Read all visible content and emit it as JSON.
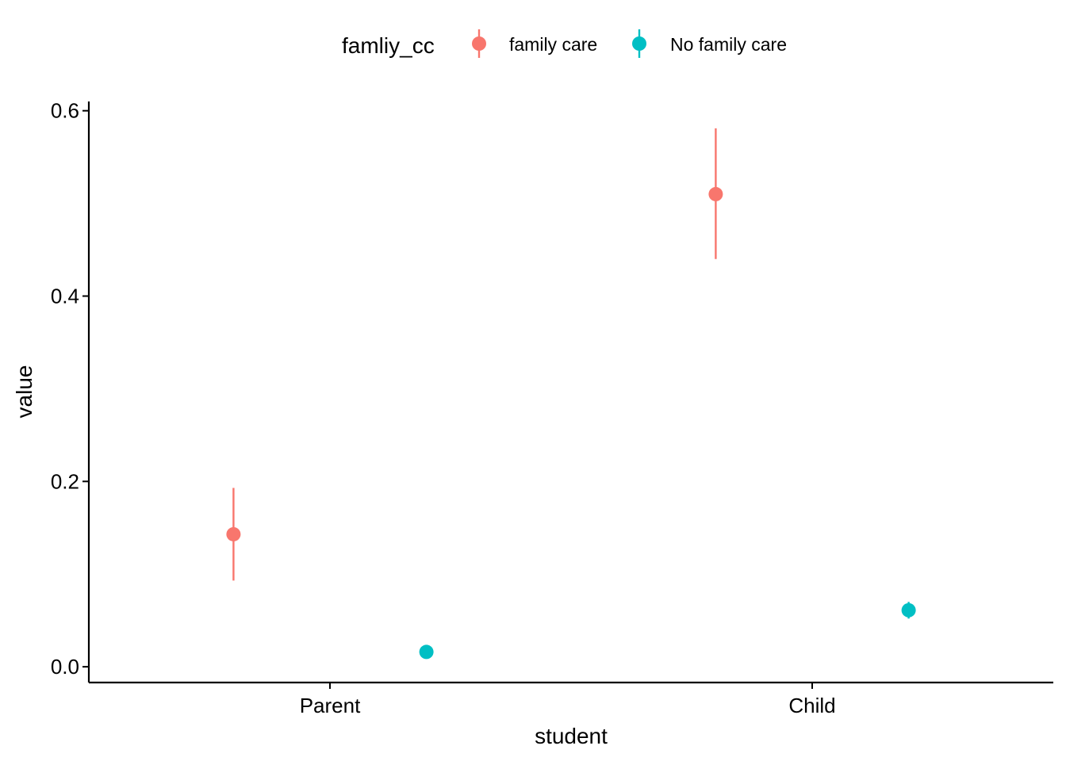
{
  "chart_data": {
    "type": "scatter",
    "xlabel": "student",
    "ylabel": "value",
    "categories": [
      "Parent",
      "Child"
    ],
    "ylim": [
      -0.017,
      0.61
    ],
    "yticks": [
      0.0,
      0.2,
      0.4,
      0.6
    ],
    "ytick_labels": [
      "0.0",
      "0.2",
      "0.4",
      "0.6"
    ],
    "grid": false,
    "legend": {
      "title": "famliy_cc",
      "position": "top",
      "entries": [
        "family care",
        "No family care"
      ]
    },
    "series": [
      {
        "name": "family care",
        "color": "#F8766D",
        "values": [
          0.143,
          0.51
        ],
        "lower": [
          0.093,
          0.44
        ],
        "upper": [
          0.193,
          0.581
        ]
      },
      {
        "name": "No family care",
        "color": "#00BFC4",
        "values": [
          0.016,
          0.061
        ],
        "lower": [
          0.014,
          0.052
        ],
        "upper": [
          0.018,
          0.07
        ]
      }
    ]
  }
}
